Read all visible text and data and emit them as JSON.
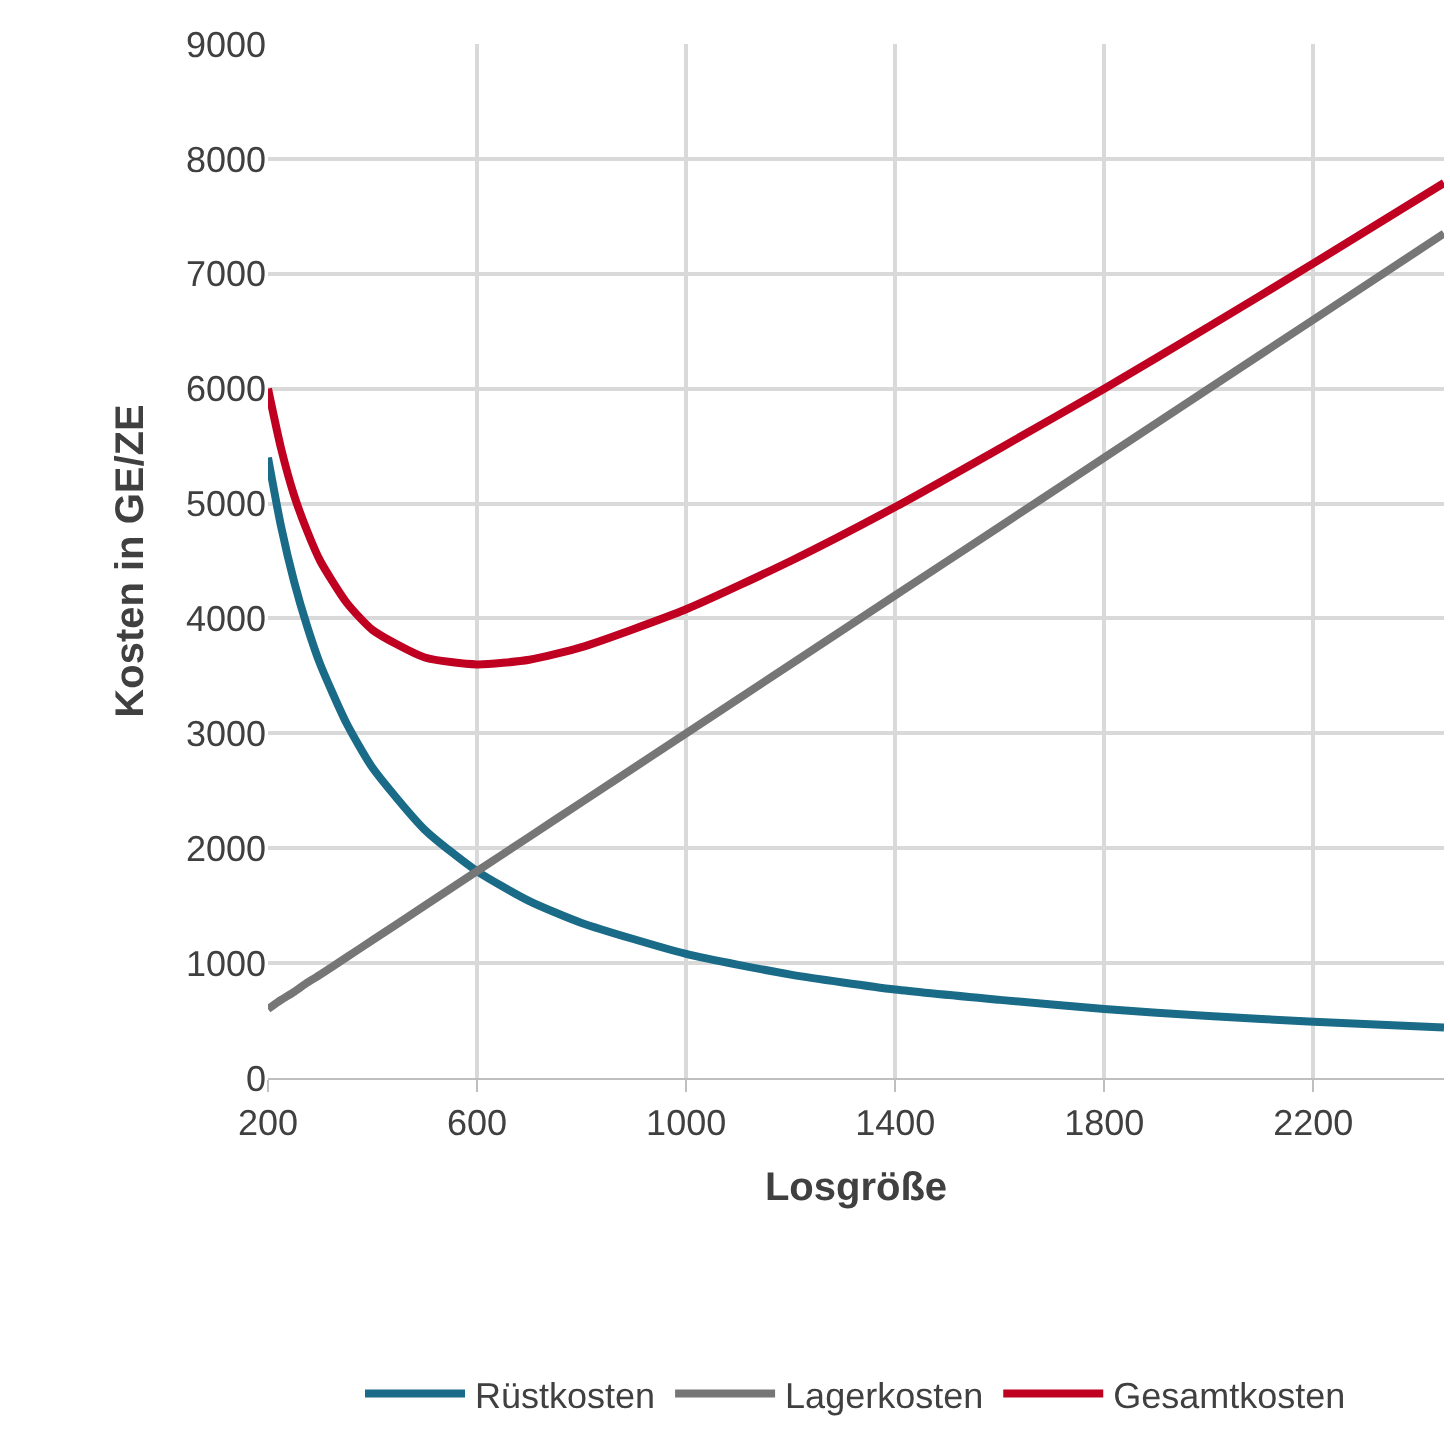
{
  "chart_data": {
    "type": "line",
    "xlabel": "Losgröße",
    "ylabel": "Kosten in GE/ZE",
    "x": [
      200,
      225,
      250,
      275,
      300,
      350,
      400,
      500,
      600,
      700,
      800,
      1000,
      1200,
      1400,
      1600,
      1800,
      2000,
      2200,
      2450
    ],
    "series": [
      {
        "name": "Rüstkosten",
        "color": "#1a6b87",
        "values": [
          5400,
          4800,
          4320,
          3930,
          3600,
          3090,
          2700,
          2160,
          1800,
          1540,
          1350,
          1080,
          900,
          770,
          680,
          600,
          540,
          490,
          440
        ]
      },
      {
        "name": "Lagerkosten",
        "color": "#767676",
        "values": [
          600,
          680,
          750,
          830,
          900,
          1050,
          1200,
          1500,
          1800,
          2100,
          2400,
          3000,
          3600,
          4200,
          4800,
          5400,
          6000,
          6600,
          7350
        ]
      },
      {
        "name": "Gesamtkosten",
        "color": "#c00020",
        "values": [
          6000,
          5480,
          5070,
          4760,
          4500,
          4140,
          3900,
          3660,
          3600,
          3640,
          3750,
          4080,
          4500,
          4970,
          5480,
          6000,
          6540,
          7090,
          7790
        ]
      }
    ],
    "xlim": [
      200,
      2450
    ],
    "xticks": [
      200,
      600,
      1000,
      1400,
      1800,
      2200
    ],
    "ylim": [
      0,
      9000
    ],
    "yticks": [
      0,
      1000,
      2000,
      3000,
      4000,
      5000,
      6000,
      7000,
      8000,
      9000
    ],
    "grid": true,
    "legend": "bottom",
    "marker": "none",
    "line_style": "solid"
  }
}
